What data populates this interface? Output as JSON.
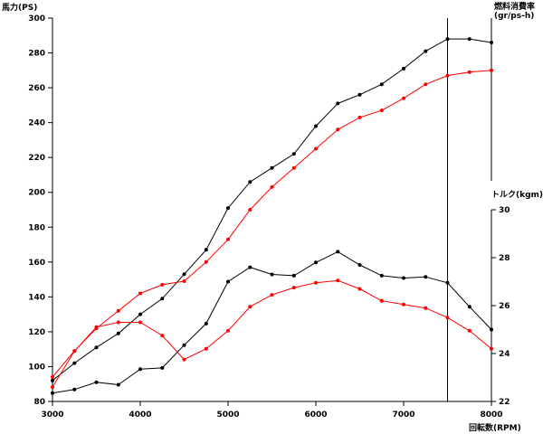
{
  "chart_data": {
    "type": "line",
    "x_label": "回転数(RPM)",
    "left_axis": {
      "label": "馬力(PS)",
      "min": 80,
      "max": 300,
      "ticks": [
        80,
        100,
        120,
        140,
        160,
        180,
        200,
        220,
        240,
        260,
        280,
        300
      ]
    },
    "torque_axis": {
      "label": "トルク(kgm)",
      "min": 22,
      "max": 30,
      "ticks": [
        22,
        24,
        26,
        28,
        30
      ]
    },
    "fuel_axis": {
      "label_line1": "燃料消費率",
      "label_line2": "(gr/ps-h)"
    },
    "x_axis": {
      "min": 3000,
      "max": 8000,
      "ticks": [
        3000,
        4000,
        5000,
        6000,
        7000,
        8000
      ]
    },
    "rpm_marker": 7500,
    "colors": {
      "black": "#000000",
      "red": "#ff0000"
    },
    "series": [
      {
        "axis": "power",
        "color": "black",
        "x": [
          3000,
          3250,
          3500,
          3750,
          4000,
          4250,
          4500,
          4750,
          5000,
          5250,
          5500,
          5750,
          6000,
          6250,
          6500,
          6750,
          7000,
          7250,
          7500,
          7750,
          8000
        ],
        "values": [
          92,
          102,
          111,
          119,
          130,
          139,
          153,
          167,
          191,
          206,
          214,
          222,
          238,
          251,
          256,
          262,
          271,
          281,
          288,
          288,
          286
        ]
      },
      {
        "axis": "power",
        "color": "red",
        "x": [
          3000,
          3250,
          3500,
          3750,
          4000,
          4250,
          4500,
          4750,
          5000,
          5250,
          5500,
          5750,
          6000,
          6250,
          6500,
          6750,
          7000,
          7250,
          7500,
          7750,
          8000
        ],
        "values": [
          94,
          109,
          122,
          132,
          142,
          147,
          149,
          160,
          173,
          190,
          203,
          214,
          225,
          236,
          243,
          247,
          254,
          262,
          267,
          269,
          270
        ]
      },
      {
        "axis": "torque",
        "color": "black",
        "x": [
          3000,
          3250,
          3500,
          3750,
          4000,
          4250,
          4500,
          4750,
          5000,
          5250,
          5500,
          5750,
          6000,
          6250,
          6500,
          6750,
          7000,
          7250,
          7500,
          7750,
          8000
        ],
        "values": [
          22.35,
          22.5,
          22.8,
          22.7,
          23.35,
          23.4,
          24.35,
          25.25,
          27.0,
          27.6,
          27.3,
          27.25,
          27.8,
          28.25,
          27.7,
          27.25,
          27.15,
          27.2,
          26.95,
          25.95,
          25.0
        ]
      },
      {
        "axis": "torque",
        "color": "red",
        "x": [
          3000,
          3250,
          3500,
          3750,
          4000,
          4250,
          4500,
          4750,
          5000,
          5250,
          5500,
          5750,
          6000,
          6250,
          6500,
          6750,
          7000,
          7250,
          7500,
          7750,
          8000
        ],
        "values": [
          22.6,
          24.1,
          25.1,
          25.3,
          25.3,
          24.75,
          23.75,
          24.2,
          24.95,
          25.95,
          26.45,
          26.75,
          26.95,
          27.05,
          26.7,
          26.2,
          26.05,
          25.9,
          25.5,
          24.95,
          24.2
        ]
      }
    ]
  }
}
